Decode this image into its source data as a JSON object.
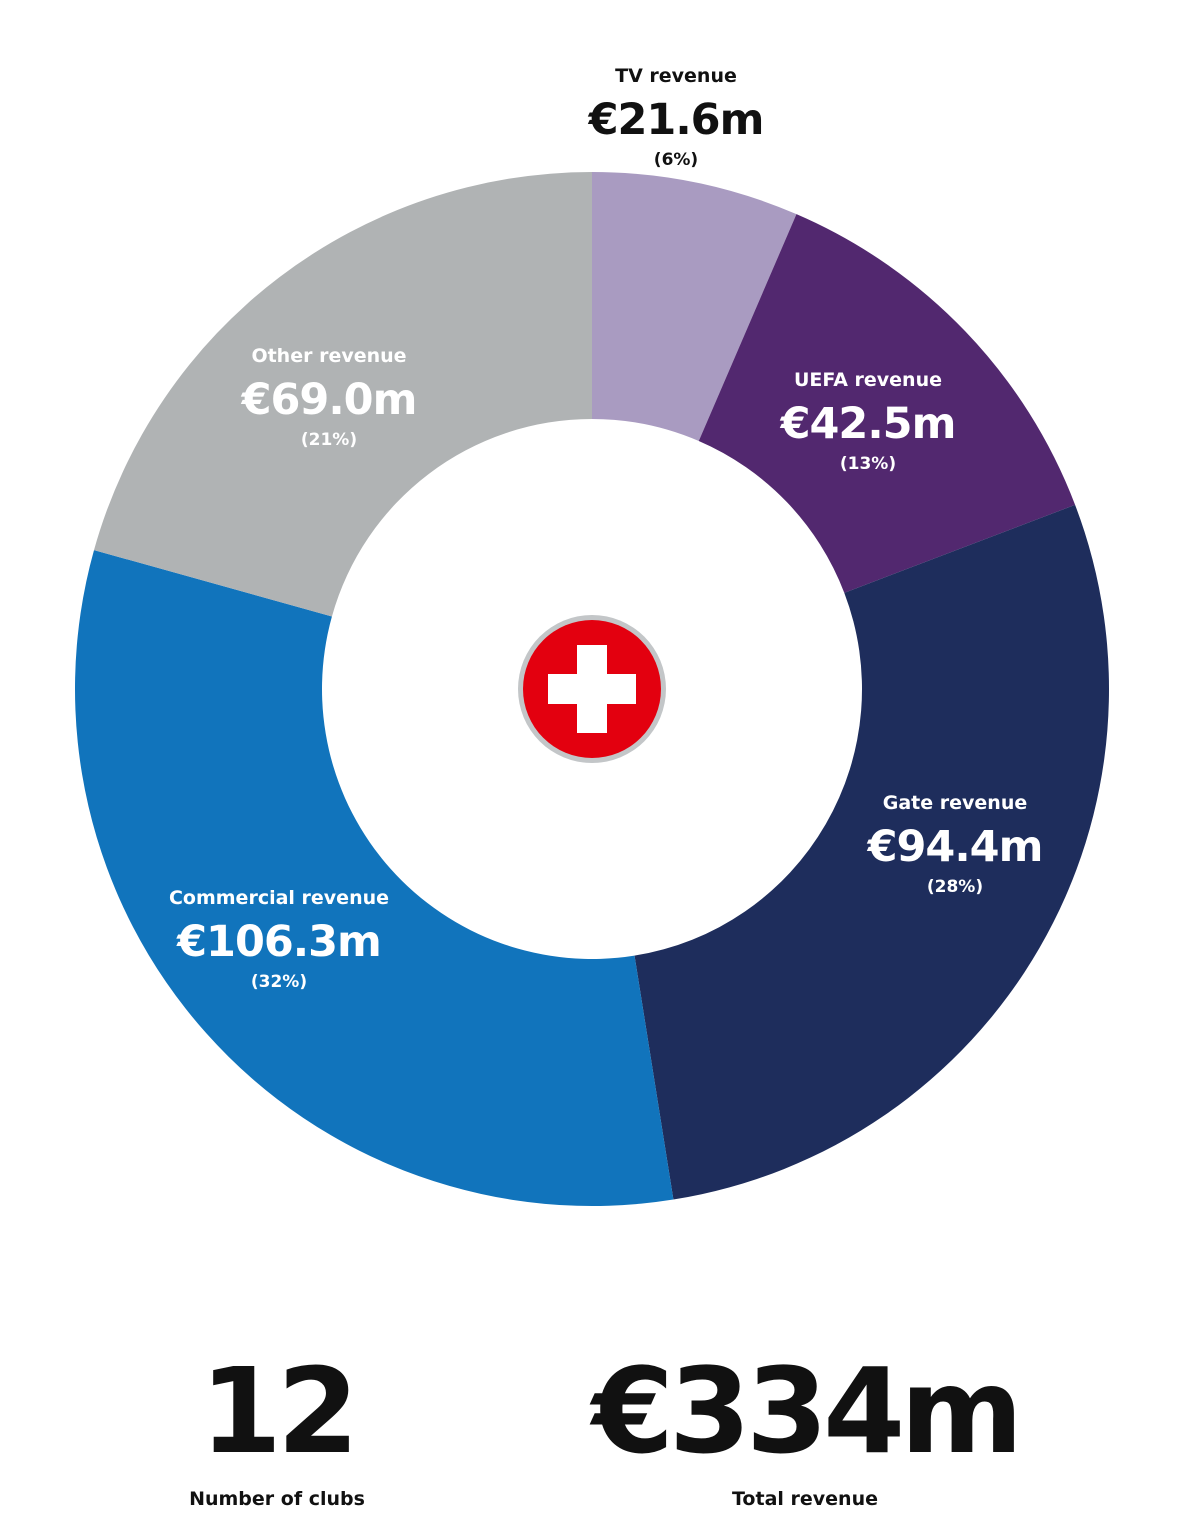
{
  "chart_data": {
    "type": "pie",
    "donut": true,
    "categories": [
      "TV revenue",
      "UEFA revenue",
      "Gate revenue",
      "Commercial revenue",
      "Other revenue"
    ],
    "values": [
      21.6,
      42.5,
      94.4,
      106.3,
      69.0
    ],
    "value_labels": [
      "€21.6m",
      "€42.5m",
      "€94.4m",
      "€106.3m",
      "€69.0m"
    ],
    "percent_labels": [
      "(6%)",
      "(13%)",
      "(28%)",
      "(32%)",
      "(21%)"
    ],
    "colors": [
      "#a99bc1",
      "#52286f",
      "#1e2d5c",
      "#1174bc",
      "#b0b3b4"
    ]
  },
  "center_icon": {
    "name": "swiss-flag-icon",
    "colors": {
      "disc": "#e3000f",
      "cross": "#ffffff",
      "ring": "#c3c6c8"
    }
  },
  "stats": {
    "clubs": {
      "value": "12",
      "label": "Number of clubs"
    },
    "total": {
      "value": "€334m",
      "label": "Total revenue"
    }
  }
}
